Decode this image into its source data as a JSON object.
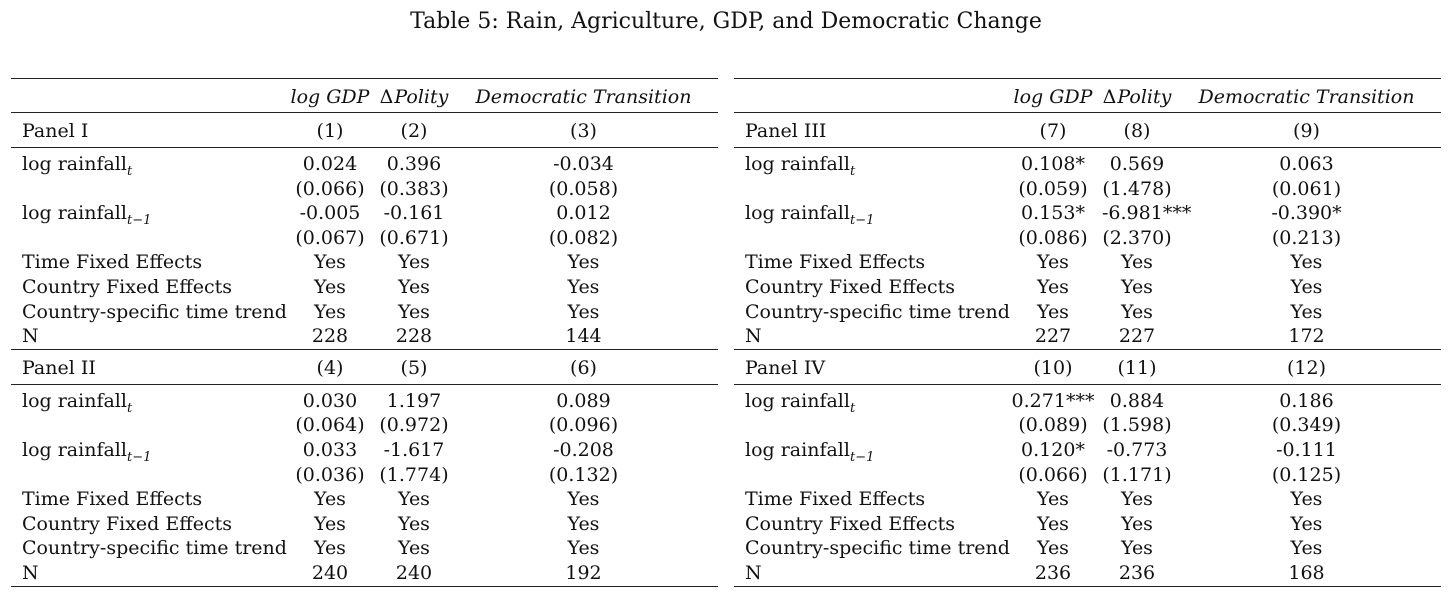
{
  "title": "Table 5: Rain, Agriculture, GDP, and Democratic Change",
  "header": {
    "col1": "log GDP",
    "col2_symbol": "Δ",
    "col2": "Polity",
    "col3": "Democratic Transition"
  },
  "row_labels": {
    "rain_t": "log rainfall",
    "rain_t_sub": "t",
    "rain_t1": "log rainfall",
    "rain_t1_sub": "t−1",
    "time_fe": "Time Fixed Effects",
    "country_fe": "Country Fixed Effects",
    "trend": "Country-specific time trend",
    "n": "N"
  },
  "panels": {
    "p1": {
      "name": "Panel I",
      "cols": [
        "(1)",
        "(2)",
        "(3)"
      ],
      "rain_t": [
        "0.024",
        "0.396",
        "-0.034"
      ],
      "rain_t_se": [
        "(0.066)",
        "(0.383)",
        "(0.058)"
      ],
      "rain_t1": [
        "-0.005",
        "-0.161",
        "0.012"
      ],
      "rain_t1_se": [
        "(0.067)",
        "(0.671)",
        "(0.082)"
      ],
      "time_fe": [
        "Yes",
        "Yes",
        "Yes"
      ],
      "country_fe": [
        "Yes",
        "Yes",
        "Yes"
      ],
      "trend": [
        "Yes",
        "Yes",
        "Yes"
      ],
      "n": [
        "228",
        "228",
        "144"
      ]
    },
    "p2": {
      "name": "Panel II",
      "cols": [
        "(4)",
        "(5)",
        "(6)"
      ],
      "rain_t": [
        "0.030",
        "1.197",
        "0.089"
      ],
      "rain_t_se": [
        "(0.064)",
        "(0.972)",
        "(0.096)"
      ],
      "rain_t1": [
        "0.033",
        "-1.617",
        "-0.208"
      ],
      "rain_t1_se": [
        "(0.036)",
        "(1.774)",
        "(0.132)"
      ],
      "time_fe": [
        "Yes",
        "Yes",
        "Yes"
      ],
      "country_fe": [
        "Yes",
        "Yes",
        "Yes"
      ],
      "trend": [
        "Yes",
        "Yes",
        "Yes"
      ],
      "n": [
        "240",
        "240",
        "192"
      ]
    },
    "p3": {
      "name": "Panel III",
      "cols": [
        "(7)",
        "(8)",
        "(9)"
      ],
      "rain_t": [
        "0.108*",
        "0.569",
        "0.063"
      ],
      "rain_t_se": [
        "(0.059)",
        "(1.478)",
        "(0.061)"
      ],
      "rain_t1": [
        "0.153*",
        "-6.981***",
        "-0.390*"
      ],
      "rain_t1_se": [
        "(0.086)",
        "(2.370)",
        "(0.213)"
      ],
      "time_fe": [
        "Yes",
        "Yes",
        "Yes"
      ],
      "country_fe": [
        "Yes",
        "Yes",
        "Yes"
      ],
      "trend": [
        "Yes",
        "Yes",
        "Yes"
      ],
      "n": [
        "227",
        "227",
        "172"
      ]
    },
    "p4": {
      "name": "Panel IV",
      "cols": [
        "(10)",
        "(11)",
        "(12)"
      ],
      "rain_t": [
        "0.271***",
        "0.884",
        "0.186"
      ],
      "rain_t_se": [
        "(0.089)",
        "(1.598)",
        "(0.349)"
      ],
      "rain_t1": [
        "0.120*",
        "-0.773",
        "-0.111"
      ],
      "rain_t1_se": [
        "(0.066)",
        "(1.171)",
        "(0.125)"
      ],
      "time_fe": [
        "Yes",
        "Yes",
        "Yes"
      ],
      "country_fe": [
        "Yes",
        "Yes",
        "Yes"
      ],
      "trend": [
        "Yes",
        "Yes",
        "Yes"
      ],
      "n": [
        "236",
        "236",
        "168"
      ]
    }
  }
}
